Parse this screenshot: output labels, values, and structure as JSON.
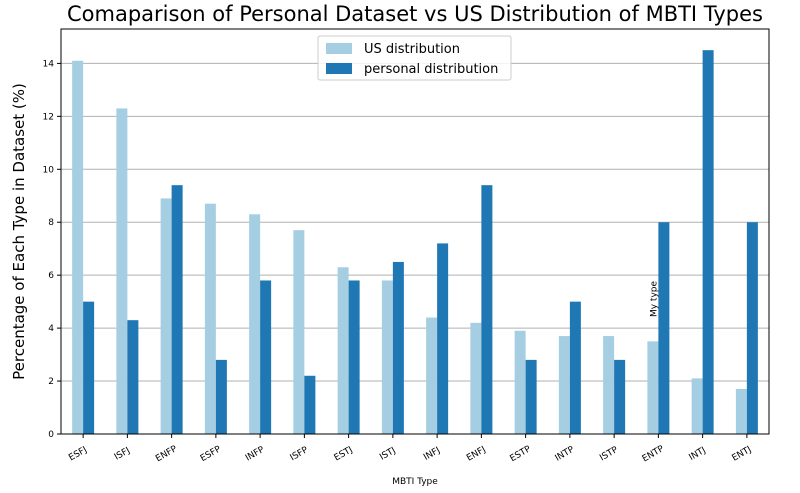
{
  "chart_data": {
    "type": "bar",
    "title": "Comaparison of Personal Dataset vs US Distribution of MBTI Types",
    "xlabel": "MBTI Type",
    "ylabel": "Percentage of Each Type in Dataset (%)",
    "ylim": [
      0,
      15.3
    ],
    "yticks": [
      "0",
      "2",
      "4",
      "6",
      "8",
      "10",
      "12",
      "14"
    ],
    "grid": "horizontal",
    "legend_position": "top-center",
    "categories": [
      "ESFJ",
      "ISFJ",
      "ENFP",
      "ESFP",
      "INFP",
      "ISFP",
      "ESTJ",
      "ISTJ",
      "INFJ",
      "ENFJ",
      "ESTP",
      "INTP",
      "ISTP",
      "ENTP",
      "INTJ",
      "ENTJ"
    ],
    "series": [
      {
        "name": "US distribution",
        "color": "#a6cee3",
        "values": [
          14.1,
          12.3,
          8.9,
          8.7,
          8.3,
          7.7,
          6.3,
          5.8,
          4.4,
          4.2,
          3.9,
          3.7,
          3.7,
          3.5,
          2.1,
          1.7
        ]
      },
      {
        "name": "personal distribution",
        "color": "#1f78b4",
        "values": [
          5.0,
          4.3,
          9.4,
          2.8,
          5.8,
          2.2,
          5.8,
          6.5,
          7.2,
          9.4,
          2.8,
          5.0,
          2.8,
          8.0,
          14.5,
          8.0
        ]
      }
    ],
    "annotations": [
      {
        "text": "My type",
        "category": "ENTP"
      }
    ]
  }
}
